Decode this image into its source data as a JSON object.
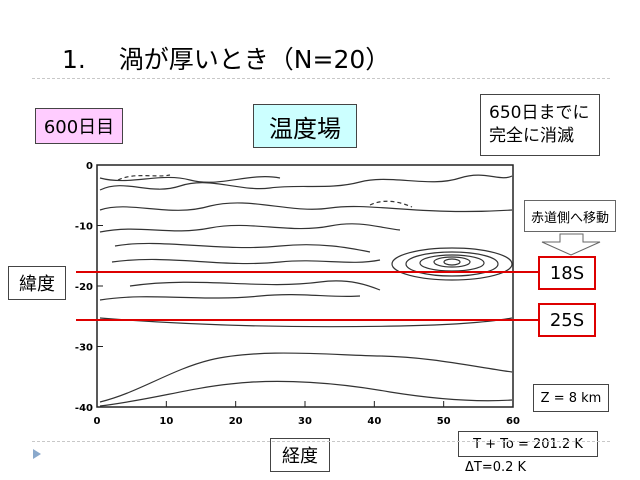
{
  "slide": {
    "title": "1.　 渦が厚いとき（N=20）",
    "day_label": "600日目",
    "field_title": "温度場",
    "note_lines": [
      "650日までに",
      "完全に消滅"
    ],
    "move_label": "赤道側へ移動",
    "lat_label": "緯度",
    "lon_label": "経度",
    "lat_marker_18": "18S",
    "lat_marker_25": "25S",
    "height_label": "Z = 8 km",
    "temp_label": "T + To = 201.2 K",
    "dt_label": "ΔT=0.2 K"
  },
  "colors": {
    "red_lines": "#dd0000",
    "pink_badge": "#ffccff",
    "cyan_title": "#ccffff",
    "bullet": "#8aa9cc"
  },
  "chart_data": {
    "type": "contour",
    "x": {
      "range": [
        0,
        60
      ],
      "ticks": [
        "0",
        "10",
        "20",
        "30",
        "40",
        "50",
        "60"
      ]
    },
    "y": {
      "range": [
        0,
        -40
      ],
      "ticks": [
        "0",
        "-10",
        "-20",
        "-30",
        "-40"
      ]
    },
    "highlight_latitudes": [
      -18,
      -25
    ],
    "vortex_center": {
      "lon": 52,
      "lat": -15
    }
  }
}
